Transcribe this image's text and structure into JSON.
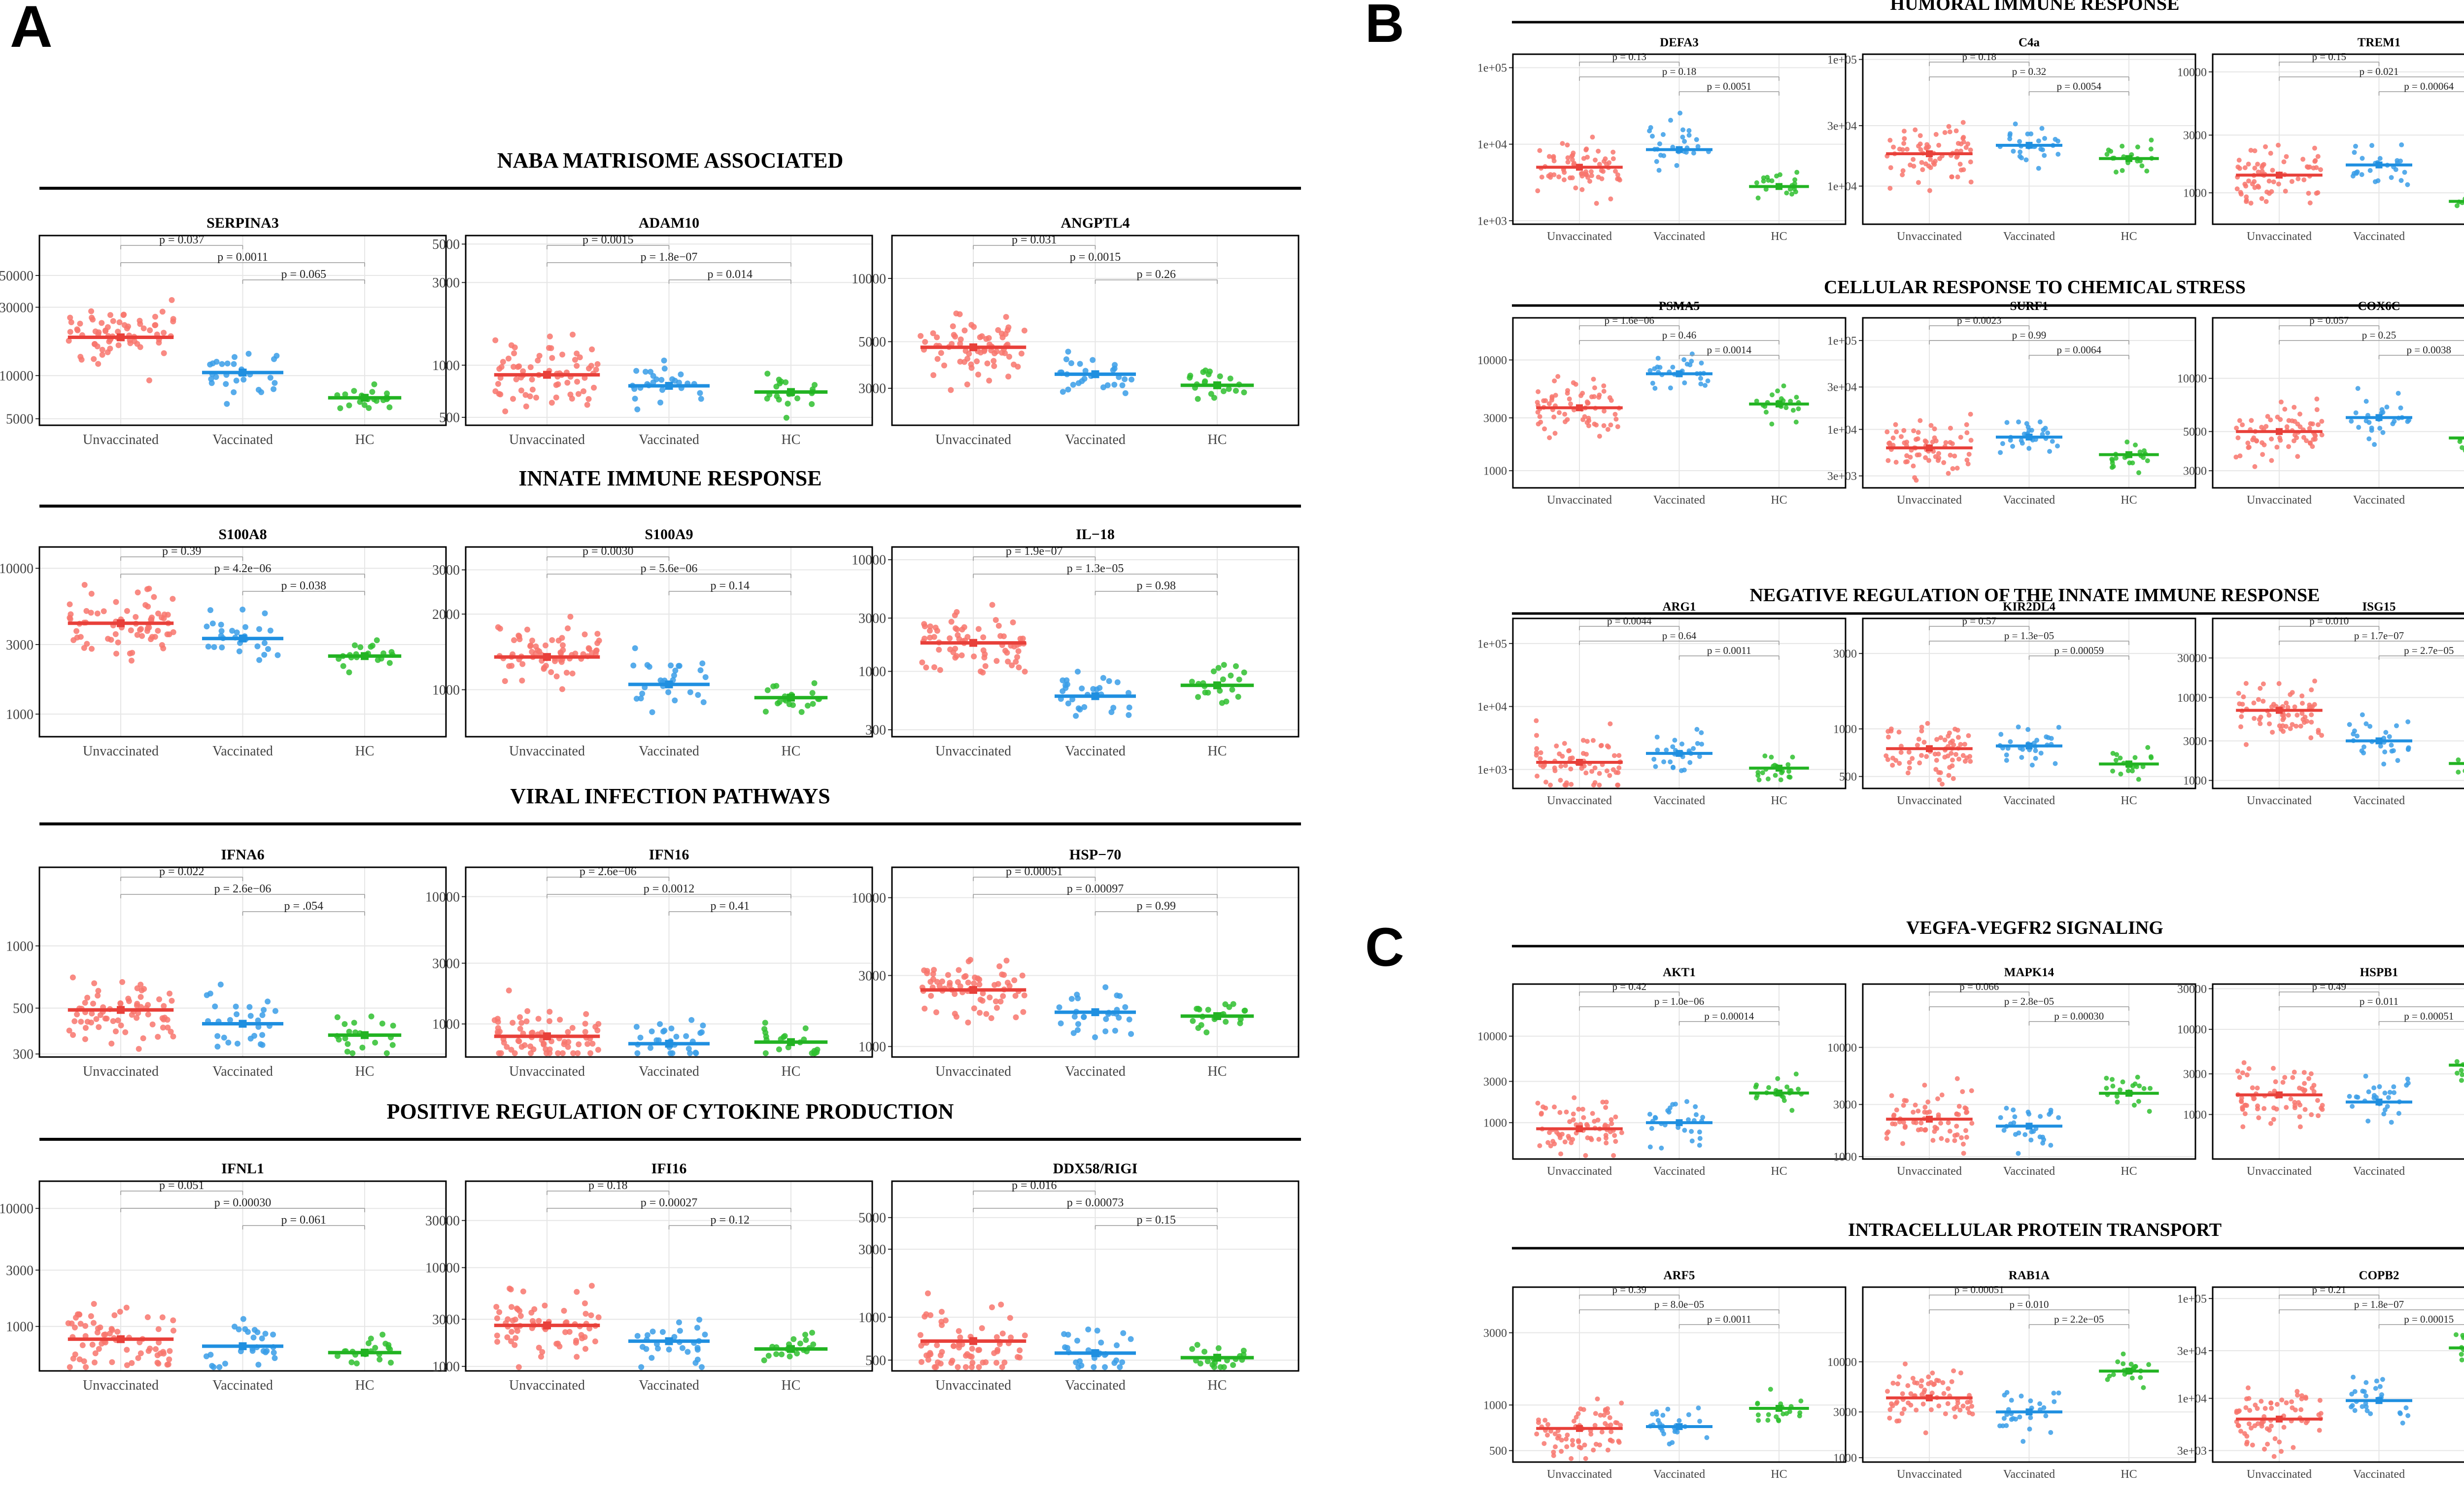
{
  "figure": {
    "panels": [
      "A",
      "B",
      "C"
    ],
    "groups": [
      "Unvaccinated",
      "Vaccinated",
      "HC"
    ]
  },
  "colors": {
    "Unvaccinated": "#f8766d",
    "Vaccinated": "#3a9ee8",
    "HC": "#2fc02f",
    "unvac_line": "#e8403a",
    "vac_line": "#1f8fe0",
    "hc_line": "#22b322"
  },
  "chart_data": [
    {
      "panel": "A",
      "section": "NABA MATRISOME ASSOCIATED",
      "charts": [
        {
          "type": "scatter",
          "title": "SERPINA3",
          "log": true,
          "ylim": [
            4500,
            95000
          ],
          "yticks": [
            5000,
            10000,
            30000,
            50000
          ],
          "ytick_labels": [
            "5000",
            "10000",
            "30000",
            "50000"
          ],
          "medians": [
            18500,
            10500,
            7000
          ],
          "pvals": [
            "p = 0.037",
            "p = 0.0011",
            "p = 0.065"
          ]
        },
        {
          "type": "scatter",
          "title": "ADAM10",
          "log": true,
          "ylim": [
            450,
            5600
          ],
          "yticks": [
            500,
            1000,
            3000,
            5000
          ],
          "ytick_labels": [
            "500",
            "1000",
            "3000",
            "5000"
          ],
          "medians": [
            880,
            760,
            700
          ],
          "pvals": [
            "p = 0.0015",
            "p = 1.8e−07",
            "p = 0.014"
          ]
        },
        {
          "type": "scatter",
          "title": "ANGPTL4",
          "log": true,
          "ylim": [
            2000,
            16000
          ],
          "yticks": [
            3000,
            5000,
            10000
          ],
          "ytick_labels": [
            "3000",
            "5000",
            "10000"
          ],
          "medians": [
            4700,
            3500,
            3100
          ],
          "pvals": [
            "p = 0.031",
            "p = 0.0015",
            "p = 0.26"
          ]
        }
      ]
    },
    {
      "panel": "A",
      "section": "INNATE IMMUNE RESPONSE",
      "charts": [
        {
          "type": "scatter",
          "title": "S100A8",
          "log": true,
          "ylim": [
            700,
            14000
          ],
          "yticks": [
            1000,
            3000,
            10000
          ],
          "ytick_labels": [
            "1000",
            "3000",
            "10000"
          ],
          "medians": [
            4200,
            3300,
            2500
          ],
          "pvals": [
            "p = 0.39",
            "p = 4.2e−06",
            "p = 0.038"
          ]
        },
        {
          "type": "scatter",
          "title": "S100A9",
          "log": true,
          "ylim": [
            650,
            3700
          ],
          "yticks": [
            1000,
            2000,
            3000
          ],
          "ytick_labels": [
            "1000",
            "2000",
            "3000"
          ],
          "medians": [
            1350,
            1050,
            930
          ],
          "pvals": [
            "p = 0.0030",
            "p = 5.6e−06",
            "p = 0.14"
          ]
        },
        {
          "type": "scatter",
          "title": "IL−18",
          "log": true,
          "ylim": [
            260,
            13000
          ],
          "yticks": [
            300,
            1000,
            3000,
            10000
          ],
          "ytick_labels": [
            "300",
            "1000",
            "3000",
            "10000"
          ],
          "medians": [
            1800,
            600,
            750
          ],
          "pvals": [
            "p = 1.9e−07",
            "p = 1.3e−05",
            "p = 0.98"
          ]
        }
      ]
    },
    {
      "panel": "A",
      "section": "VIRAL INFECTION PATHWAYS",
      "charts": [
        {
          "type": "scatter",
          "title": "IFNA6",
          "log": true,
          "ylim": [
            290,
            2400
          ],
          "yticks": [
            300,
            500,
            1000
          ],
          "ytick_labels": [
            "300",
            "500",
            "1000"
          ],
          "medians": [
            490,
            420,
            370
          ],
          "pvals": [
            "p = 0.022",
            "p = 2.6e−06",
            "p = .054"
          ]
        },
        {
          "type": "scatter",
          "title": "IFN16",
          "log": true,
          "ylim": [
            550,
            17000
          ],
          "yticks": [
            1000,
            3000,
            10000
          ],
          "ytick_labels": [
            "1000",
            "3000",
            "10000"
          ],
          "medians": [
            800,
            700,
            720
          ],
          "pvals": [
            "p = 2.6e−06",
            "p = 0.0012",
            "p = 0.41"
          ]
        },
        {
          "type": "scatter",
          "title": "HSP−70",
          "log": true,
          "ylim": [
            850,
            16000
          ],
          "yticks": [
            1000,
            3000,
            10000
          ],
          "ytick_labels": [
            "1000",
            "3000",
            "10000"
          ],
          "medians": [
            2400,
            1700,
            1600
          ],
          "pvals": [
            "p = 0.00051",
            "p = 0.00097",
            "p = 0.99"
          ]
        }
      ]
    },
    {
      "panel": "A",
      "section": "POSITIVE REGULATION OF CYTOKINE PRODUCTION",
      "charts": [
        {
          "type": "scatter",
          "title": "IFNL1",
          "log": true,
          "ylim": [
            420,
            17000
          ],
          "yticks": [
            1000,
            3000,
            10000
          ],
          "ytick_labels": [
            "1000",
            "3000",
            "10000"
          ],
          "medians": [
            780,
            680,
            600
          ],
          "pvals": [
            "p = 0.051",
            "p = 0.00030",
            "p = 0.061"
          ]
        },
        {
          "type": "scatter",
          "title": "IFI16",
          "log": true,
          "ylim": [
            900,
            75000
          ],
          "yticks": [
            1000,
            3000,
            10000,
            30000
          ],
          "ytick_labels": [
            "1000",
            "3000",
            "10000",
            "30000"
          ],
          "medians": [
            2600,
            1800,
            1500
          ],
          "pvals": [
            "p = 0.18",
            "p = 0.00027",
            "p = 0.12"
          ]
        },
        {
          "type": "scatter",
          "title": "DDX58/RIGI",
          "log": true,
          "ylim": [
            420,
            9000
          ],
          "yticks": [
            500,
            1000,
            3000,
            5000
          ],
          "ytick_labels": [
            "500",
            "1000",
            "3000",
            "5000"
          ],
          "medians": [
            680,
            560,
            520
          ],
          "pvals": [
            "p = 0.016",
            "p = 0.00073",
            "p = 0.15"
          ]
        }
      ]
    },
    {
      "panel": "B",
      "section": "HUMORAL IMMUNE RESPONSE",
      "charts": [
        {
          "type": "scatter",
          "title": "DEFA3",
          "log": true,
          "ylim": [
            900,
            150000
          ],
          "yticks": [
            1000,
            10000,
            100000
          ],
          "ytick_labels": [
            "1e+03",
            "1e+04",
            "1e+05"
          ],
          "medians": [
            5000,
            8500,
            2800
          ],
          "pvals": [
            "p = 0.13",
            "p = 0.18",
            "p = 0.0051"
          ]
        },
        {
          "type": "scatter",
          "title": "C4a",
          "log": true,
          "ylim": [
            5000,
            110000
          ],
          "yticks": [
            10000,
            30000,
            100000
          ],
          "ytick_labels": [
            "1e+04",
            "3e+04",
            "1e+05"
          ],
          "medians": [
            18000,
            21000,
            16500
          ],
          "pvals": [
            "p = 0.18",
            "p = 0.32",
            "p = 0.0054"
          ]
        },
        {
          "type": "scatter",
          "title": "TREM1",
          "log": true,
          "ylim": [
            550,
            14000
          ],
          "yticks": [
            1000,
            3000,
            10000
          ],
          "ytick_labels": [
            "1000",
            "3000",
            "10000"
          ],
          "medians": [
            1400,
            1700,
            850
          ],
          "pvals": [
            "p = 0.15",
            "p = 0.021",
            "p = 0.00064"
          ]
        }
      ]
    },
    {
      "panel": "B",
      "section": "CELLULAR RESPONSE TO CHEMICAL STRESS",
      "charts": [
        {
          "type": "scatter",
          "title": "PSMA5",
          "log": true,
          "ylim": [
            700,
            24000
          ],
          "yticks": [
            1000,
            3000,
            10000
          ],
          "ytick_labels": [
            "1000",
            "3000",
            "10000"
          ],
          "medians": [
            3700,
            7500,
            4000
          ],
          "pvals": [
            "p = 1.6e−06",
            "p = 0.46",
            "p = 0.0014"
          ]
        },
        {
          "type": "scatter",
          "title": "SURF1",
          "log": true,
          "ylim": [
            2200,
            180000
          ],
          "yticks": [
            3000,
            10000,
            30000,
            100000
          ],
          "ytick_labels": [
            "3e+03",
            "1e+04",
            "3e+04",
            "1e+05"
          ],
          "medians": [
            6200,
            8200,
            5200
          ],
          "pvals": [
            "p = 0.0023",
            "p = 0.99",
            "p = 0.0064"
          ]
        },
        {
          "type": "scatter",
          "title": "COX6C",
          "log": true,
          "ylim": [
            2400,
            22000
          ],
          "yticks": [
            3000,
            5000,
            10000
          ],
          "ytick_labels": [
            "3000",
            "5000",
            "10000"
          ],
          "medians": [
            5000,
            6000,
            4600
          ],
          "pvals": [
            "p = 0.057",
            "p = 0.25",
            "p = 0.0038"
          ]
        }
      ]
    },
    {
      "panel": "B",
      "section": "NEGATIVE REGULATION OF THE INNATE IMMUNE RESPONSE",
      "charts": [
        {
          "type": "scatter",
          "title": "ARG1",
          "log": true,
          "ylim": [
            500,
            250000
          ],
          "yticks": [
            1000,
            10000,
            100000
          ],
          "ytick_labels": [
            "1e+03",
            "1e+04",
            "1e+05"
          ],
          "medians": [
            1300,
            1800,
            1050
          ],
          "pvals": [
            "p = 0.0044",
            "p = 0.64",
            "p = 0.0011"
          ]
        },
        {
          "type": "scatter",
          "title": "KIR2DL4",
          "log": true,
          "ylim": [
            420,
            5000
          ],
          "yticks": [
            500,
            1000,
            3000
          ],
          "ytick_labels": [
            "500",
            "1000",
            "3000"
          ],
          "medians": [
            750,
            780,
            600
          ],
          "pvals": [
            "p = 0.57",
            "p = 1.3e−05",
            "p = 0.00059"
          ]
        },
        {
          "type": "scatter",
          "title": "ISG15",
          "log": true,
          "ylim": [
            800,
            90000
          ],
          "yticks": [
            1000,
            3000,
            10000,
            30000
          ],
          "ytick_labels": [
            "1000",
            "3000",
            "10000",
            "30000"
          ],
          "medians": [
            7000,
            3000,
            1600
          ],
          "pvals": [
            "p = 0.010",
            "p = 1.7e−07",
            "p = 2.7e−05"
          ]
        }
      ]
    },
    {
      "panel": "C",
      "section": "VEGFA-VEGFR2 SIGNALING",
      "charts": [
        {
          "type": "scatter",
          "title": "AKT1",
          "log": true,
          "ylim": [
            380,
            40000
          ],
          "yticks": [
            1000,
            3000,
            10000
          ],
          "ytick_labels": [
            "1000",
            "3000",
            "10000"
          ],
          "medians": [
            850,
            1000,
            2200
          ],
          "pvals": [
            "p = 0.42",
            "p = 1.0e−06",
            "p = 0.00014"
          ]
        },
        {
          "type": "scatter",
          "title": "MAPK14",
          "log": true,
          "ylim": [
            950,
            38000
          ],
          "yticks": [
            1000,
            3000,
            10000
          ],
          "ytick_labels": [
            "1000",
            "3000",
            "10000"
          ],
          "medians": [
            2200,
            1900,
            3800
          ],
          "pvals": [
            "p = 0.066",
            "p = 2.8e−05",
            "p = 0.00030"
          ]
        },
        {
          "type": "scatter",
          "title": "HSPB1",
          "log": true,
          "ylim": [
            300,
            34000
          ],
          "yticks": [
            1000,
            3000,
            10000,
            30000
          ],
          "ytick_labels": [
            "1000",
            "3000",
            "10000",
            "30000"
          ],
          "medians": [
            1700,
            1400,
            3800
          ],
          "pvals": [
            "p = 0.49",
            "p = 0.011",
            "p = 0.00051"
          ]
        }
      ]
    },
    {
      "panel": "C",
      "section": "INTRACELLULAR PROTEIN TRANSPORT",
      "charts": [
        {
          "type": "scatter",
          "title": "ARF5",
          "log": true,
          "ylim": [
            420,
            6000
          ],
          "yticks": [
            500,
            1000,
            3000
          ],
          "ytick_labels": [
            "500",
            "1000",
            "3000"
          ],
          "medians": [
            700,
            720,
            950
          ],
          "pvals": [
            "p = 0.39",
            "p = 8.0e−05",
            "p = 0.0011"
          ]
        },
        {
          "type": "scatter",
          "title": "RAB1A",
          "log": true,
          "ylim": [
            900,
            60000
          ],
          "yticks": [
            1000,
            3000,
            10000
          ],
          "ytick_labels": [
            "1000",
            "3000",
            "10000"
          ],
          "medians": [
            4200,
            3000,
            8000
          ],
          "pvals": [
            "p = 0.00051",
            "p = 0.010",
            "p = 2.2e−05"
          ]
        },
        {
          "type": "scatter",
          "title": "COPB2",
          "log": true,
          "ylim": [
            2300,
            130000
          ],
          "yticks": [
            3000,
            10000,
            30000,
            100000
          ],
          "ytick_labels": [
            "3e+03",
            "1e+04",
            "3e+04",
            "1e+05"
          ],
          "medians": [
            6200,
            9500,
            32000
          ],
          "pvals": [
            "p = 0.21",
            "p = 1.8e−07",
            "p = 0.00015"
          ]
        }
      ]
    }
  ]
}
